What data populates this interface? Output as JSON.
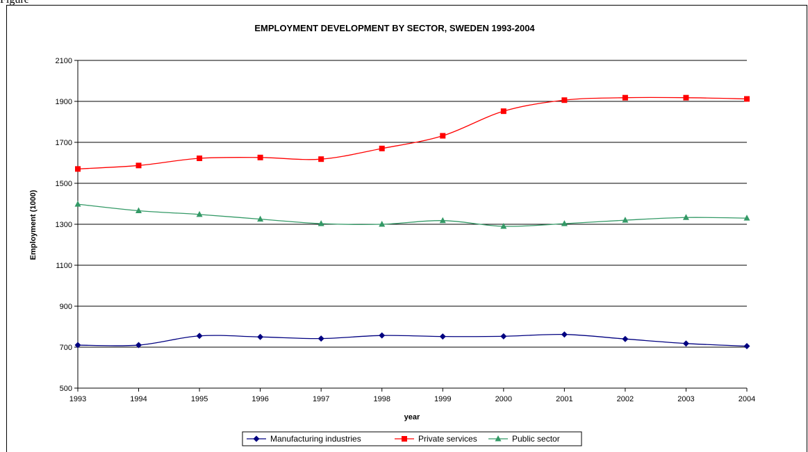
{
  "page": {
    "top_text": "Figure"
  },
  "colors": {
    "grid": "#000000",
    "manufacturing": "#000080",
    "private": "#ff0000",
    "public": "#339966"
  },
  "chart_data": {
    "type": "line",
    "title": "EMPLOYMENT DEVELOPMENT BY SECTOR, SWEDEN 1993-2004",
    "xlabel": "year",
    "ylabel": "Employment (1000)",
    "categories": [
      "1993",
      "1994",
      "1995",
      "1996",
      "1997",
      "1998",
      "1999",
      "2000",
      "2001",
      "2002",
      "2003",
      "2004"
    ],
    "ylim": [
      500,
      2100
    ],
    "yticks": [
      500,
      700,
      900,
      1100,
      1300,
      1500,
      1700,
      1900,
      2100
    ],
    "grid": true,
    "legend_position": "bottom",
    "series": [
      {
        "name": "Manufacturing industries",
        "marker": "diamond",
        "color": "#000080",
        "values": [
          710,
          710,
          755,
          750,
          742,
          757,
          752,
          753,
          762,
          740,
          718,
          705
        ]
      },
      {
        "name": "Private services",
        "marker": "square",
        "color": "#ff0000",
        "values": [
          1570,
          1587,
          1622,
          1626,
          1618,
          1670,
          1732,
          1852,
          1906,
          1918,
          1918,
          1912
        ]
      },
      {
        "name": "Public sector",
        "marker": "triangle",
        "color": "#339966",
        "values": [
          1398,
          1366,
          1348,
          1325,
          1303,
          1300,
          1318,
          1290,
          1303,
          1320,
          1333,
          1330
        ]
      }
    ]
  }
}
